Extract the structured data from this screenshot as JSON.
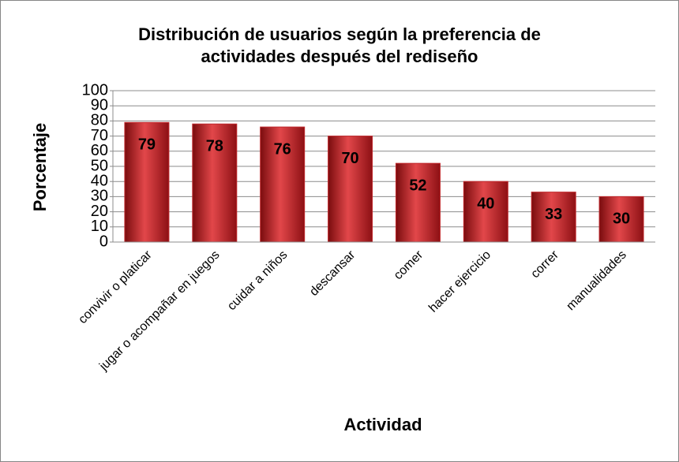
{
  "chart_data": {
    "type": "bar",
    "title": [
      "Distribución de usuarios según la preferencia de",
      "actividades después del rediseño"
    ],
    "x_label": "Actividad",
    "y_label": "Porcentaje",
    "categories": [
      "convivir o platicar",
      "jugar o acompañar en juegos",
      "cuidar a niños",
      "descansar",
      "comer",
      "hacer ejercicio",
      "correr",
      "manualidades"
    ],
    "values": [
      79,
      78,
      76,
      70,
      52,
      40,
      33,
      30
    ],
    "color": "#c0282c",
    "ylim": [
      0,
      100
    ],
    "yticks": [
      0,
      10,
      20,
      30,
      40,
      50,
      60,
      70,
      80,
      90,
      100
    ],
    "grid": true
  }
}
